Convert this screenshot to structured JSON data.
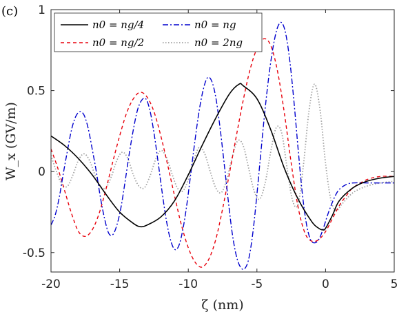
{
  "panel_label": "(c)",
  "chart_data": {
    "type": "line",
    "title": "",
    "xlabel": "ζ (nm)",
    "ylabel": "W_x (GV/m)",
    "xlim": [
      -20,
      5
    ],
    "ylim": [
      -0.62,
      1.0
    ],
    "xticks": [
      -20,
      -15,
      -10,
      -5,
      0,
      5
    ],
    "xtick_labels": [
      "-20",
      "-15",
      "-10",
      "-5",
      "0",
      "5"
    ],
    "yticks": [
      -0.5,
      0,
      0.5,
      1
    ],
    "ytick_labels": [
      "-0.5",
      "0",
      "0.5",
      "1"
    ],
    "grid": false,
    "legend_position": "top-left",
    "series": [
      {
        "name": "n0 = ng/4",
        "color": "#000000",
        "dash": "solid",
        "x": [
          -20,
          -19,
          -18,
          -17,
          -16,
          -15,
          -14,
          -13.5,
          -13,
          -12,
          -11,
          -10,
          -9,
          -8,
          -7,
          -6.3,
          -6,
          -5,
          -4,
          -3,
          -2,
          -1,
          -0.5,
          -0.2,
          0,
          0.5,
          1,
          2,
          3,
          4,
          5
        ],
        "y": [
          0.22,
          0.16,
          0.08,
          -0.02,
          -0.14,
          -0.25,
          -0.32,
          -0.34,
          -0.33,
          -0.28,
          -0.18,
          -0.02,
          0.16,
          0.33,
          0.48,
          0.54,
          0.53,
          0.45,
          0.26,
          0.02,
          -0.17,
          -0.31,
          -0.35,
          -0.36,
          -0.35,
          -0.27,
          -0.18,
          -0.1,
          -0.06,
          -0.04,
          -0.03
        ]
      },
      {
        "name": "n0 = ng/2",
        "color": "#e8000b",
        "dash": "dashed",
        "x": [
          -20,
          -19.5,
          -19,
          -18.5,
          -18,
          -17.5,
          -17,
          -16.5,
          -16,
          -15.5,
          -15,
          -14.5,
          -14,
          -13.5,
          -13,
          -12.5,
          -12,
          -11.5,
          -11,
          -10.5,
          -10,
          -9.5,
          -9,
          -8.5,
          -8,
          -7.5,
          -7,
          -6.5,
          -6,
          -5.5,
          -5,
          -4.5,
          -4,
          -3.5,
          -3,
          -2.5,
          -2,
          -1.5,
          -1,
          -0.5,
          0,
          0.5,
          1,
          1.5,
          2,
          3,
          4,
          5
        ],
        "y": [
          0.14,
          0.02,
          -0.12,
          -0.26,
          -0.37,
          -0.4,
          -0.36,
          -0.26,
          -0.11,
          0.06,
          0.22,
          0.36,
          0.45,
          0.49,
          0.46,
          0.37,
          0.22,
          0.04,
          -0.15,
          -0.33,
          -0.47,
          -0.56,
          -0.59,
          -0.54,
          -0.42,
          -0.23,
          -0.01,
          0.22,
          0.44,
          0.63,
          0.76,
          0.82,
          0.78,
          0.62,
          0.36,
          0.05,
          -0.22,
          -0.38,
          -0.43,
          -0.42,
          -0.37,
          -0.29,
          -0.21,
          -0.15,
          -0.1,
          -0.05,
          -0.03,
          -0.03
        ]
      },
      {
        "name": "n0 = ng",
        "color": "#0000cd",
        "dash": "dashdot",
        "x": [
          -20,
          -19.7,
          -19.4,
          -19.1,
          -18.8,
          -18.5,
          -18.2,
          -17.9,
          -17.6,
          -17.3,
          -17,
          -16.7,
          -16.4,
          -16.1,
          -15.8,
          -15.5,
          -15.2,
          -14.9,
          -14.6,
          -14.3,
          -14,
          -13.7,
          -13.4,
          -13.1,
          -12.8,
          -12.5,
          -12.2,
          -11.9,
          -11.6,
          -11.3,
          -11,
          -10.7,
          -10.4,
          -10.1,
          -9.8,
          -9.5,
          -9.2,
          -8.9,
          -8.6,
          -8.3,
          -8,
          -7.7,
          -7.4,
          -7.1,
          -6.8,
          -6.5,
          -6.2,
          -5.9,
          -5.6,
          -5.3,
          -5,
          -4.7,
          -4.4,
          -4.1,
          -3.8,
          -3.5,
          -3.2,
          -2.9,
          -2.6,
          -2.3,
          -2,
          -1.7,
          -1.4,
          -1.1,
          -0.8,
          -0.5,
          -0.2,
          0.1,
          0.4,
          0.7,
          1,
          1.5,
          2,
          3,
          4,
          5
        ],
        "y": [
          -0.33,
          -0.27,
          -0.16,
          -0.01,
          0.13,
          0.26,
          0.34,
          0.37,
          0.35,
          0.27,
          0.14,
          0.0,
          -0.16,
          -0.29,
          -0.38,
          -0.39,
          -0.33,
          -0.22,
          -0.06,
          0.11,
          0.26,
          0.38,
          0.44,
          0.45,
          0.38,
          0.24,
          0.06,
          -0.13,
          -0.3,
          -0.42,
          -0.48,
          -0.46,
          -0.36,
          -0.2,
          0.0,
          0.2,
          0.38,
          0.51,
          0.58,
          0.56,
          0.46,
          0.28,
          0.06,
          -0.17,
          -0.38,
          -0.52,
          -0.59,
          -0.6,
          -0.54,
          -0.38,
          -0.14,
          0.13,
          0.39,
          0.61,
          0.78,
          0.89,
          0.92,
          0.85,
          0.68,
          0.43,
          0.14,
          -0.13,
          -0.32,
          -0.42,
          -0.44,
          -0.42,
          -0.36,
          -0.28,
          -0.21,
          -0.15,
          -0.11,
          -0.08,
          -0.07,
          -0.07,
          -0.07,
          -0.07
        ]
      },
      {
        "name": "n0 = 2ng",
        "color": "#a0a0a0",
        "dash": "dotted",
        "x": [
          -20,
          -19.6,
          -19.2,
          -18.8,
          -18.4,
          -18,
          -17.6,
          -17.2,
          -16.8,
          -16.4,
          -16,
          -15.6,
          -15.2,
          -14.8,
          -14.4,
          -14,
          -13.6,
          -13.2,
          -12.8,
          -12.4,
          -12,
          -11.6,
          -11.2,
          -10.8,
          -10.4,
          -10,
          -9.6,
          -9.2,
          -8.8,
          -8.4,
          -8,
          -7.6,
          -7.2,
          -6.8,
          -6.4,
          -6,
          -5.6,
          -5.2,
          -4.8,
          -4.4,
          -4,
          -3.6,
          -3.2,
          -2.8,
          -2.4,
          -2,
          -1.6,
          -1.2,
          -0.8,
          -0.4,
          0,
          0.4,
          0.8,
          1.2,
          2,
          3,
          4,
          5
        ],
        "y": [
          0.1,
          0.0,
          -0.08,
          -0.09,
          -0.02,
          0.07,
          0.11,
          0.07,
          -0.02,
          -0.09,
          -0.1,
          -0.03,
          0.07,
          0.12,
          0.08,
          -0.02,
          -0.09,
          -0.1,
          -0.03,
          0.07,
          0.13,
          0.09,
          -0.01,
          -0.1,
          -0.12,
          -0.05,
          0.07,
          0.15,
          0.11,
          0.0,
          -0.1,
          -0.13,
          -0.05,
          0.09,
          0.19,
          0.16,
          0.02,
          -0.12,
          -0.17,
          -0.07,
          0.12,
          0.27,
          0.24,
          0.02,
          -0.18,
          -0.2,
          0.05,
          0.38,
          0.54,
          0.38,
          0.05,
          -0.18,
          -0.24,
          -0.2,
          -0.13,
          -0.09,
          -0.07,
          -0.06
        ]
      }
    ]
  }
}
